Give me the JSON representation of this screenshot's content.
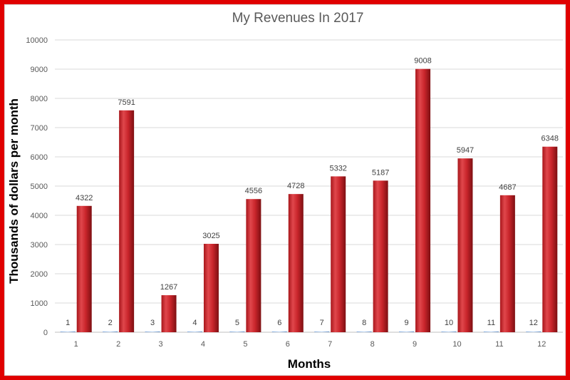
{
  "chart_data": {
    "type": "bar",
    "title": "My Revenues In 2017",
    "xlabel": "Months",
    "ylabel": "Thousands of dollars per month",
    "categories": [
      "1",
      "2",
      "3",
      "4",
      "5",
      "6",
      "7",
      "8",
      "9",
      "10",
      "11",
      "12"
    ],
    "series": [
      {
        "values": [
          1,
          2,
          3,
          4,
          5,
          6,
          7,
          8,
          9,
          10,
          11,
          12
        ],
        "color": "#4f81bd",
        "data_labels": [
          "1",
          "2",
          "3",
          "4",
          "5",
          "6",
          "7",
          "8",
          "9",
          "10",
          "11",
          "12"
        ]
      },
      {
        "values": [
          4322,
          7591,
          1267,
          3025,
          4556,
          4728,
          5332,
          5187,
          9008,
          5947,
          4687,
          6348
        ],
        "color": "#c0272d",
        "data_labels": [
          "4322",
          "7591",
          "1267",
          "3025",
          "4556",
          "4728",
          "5332",
          "5187",
          "9008",
          "5947",
          "4687",
          "6348"
        ]
      }
    ],
    "ylim": [
      0,
      10000
    ],
    "yticks": [
      "0",
      "1000",
      "2000",
      "3000",
      "4000",
      "5000",
      "6000",
      "7000",
      "8000",
      "9000",
      "10000"
    ],
    "grid": true,
    "legend": "none",
    "frame_color": "#e00000"
  }
}
